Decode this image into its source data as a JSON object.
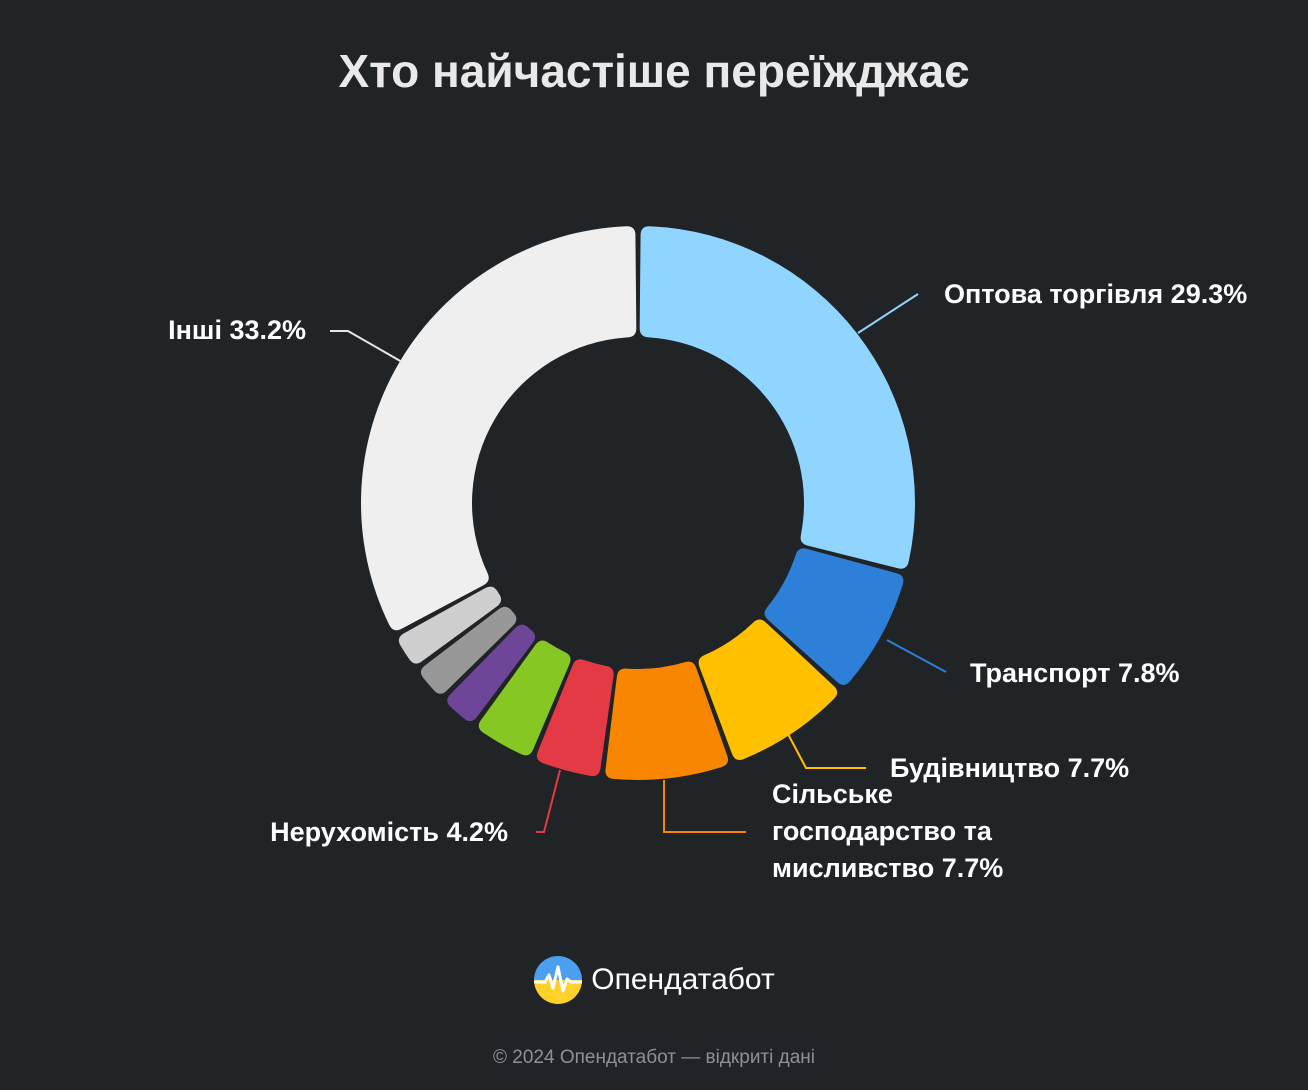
{
  "title": "Хто найчастіше переїжджає",
  "chart_data": {
    "type": "pie",
    "title": "Хто найчастіше переїжджає",
    "slices": [
      {
        "name": "Оптова торгівля",
        "value": 29.3,
        "color": "#90D5FF",
        "label_lines": [
          "Оптова торгівля 29.3%"
        ]
      },
      {
        "name": "Транспорт",
        "value": 7.8,
        "color": "#2D7FD7",
        "label_lines": [
          "Транспорт 7.8%"
        ]
      },
      {
        "name": "Будівництво",
        "value": 7.7,
        "color": "#FFC000",
        "label_lines": [
          "Будівництво 7.7%"
        ]
      },
      {
        "name": "Сільське господарство та мисливство",
        "value": 7.7,
        "color": "#F98600",
        "label_lines": [
          "Сільське",
          "господарство та",
          "мисливство 7.7%"
        ]
      },
      {
        "name": "Нерухомість",
        "value": 4.2,
        "color": "#E43A45",
        "label_lines": [
          "Нерухомість 4.2%"
        ]
      },
      {
        "name": "",
        "value": 3.9,
        "color": "#86C724",
        "label_lines": []
      },
      {
        "name": "",
        "value": 2.4,
        "color": "#6E4699",
        "label_lines": []
      },
      {
        "name": "",
        "value": 2.3,
        "color": "#989898",
        "label_lines": []
      },
      {
        "name": "",
        "value": 2.3,
        "color": "#CFCFCF",
        "label_lines": []
      },
      {
        "name": "Інші",
        "value": 33.2,
        "color": "#EFEFEF",
        "label_lines": [
          "Інші 33.2%"
        ]
      }
    ]
  },
  "brand": {
    "name": "Опендатабот",
    "logo_icon": "opendatabot-logo-icon"
  },
  "footer": "© 2024 Опендатабот — відкриті дані"
}
